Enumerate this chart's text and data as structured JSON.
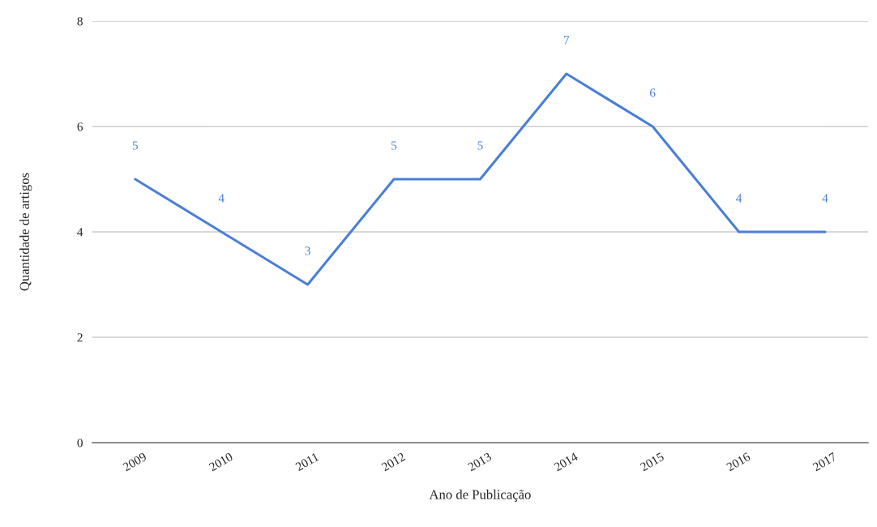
{
  "chart_data": {
    "type": "line",
    "xlabel": "Ano de Publicação",
    "ylabel": "Quantidade de artigos",
    "categories": [
      "2009",
      "2010",
      "2011",
      "2012",
      "2013",
      "2014",
      "2015",
      "2016",
      "2017"
    ],
    "series": [
      {
        "color": "#4a7fd6",
        "values": [
          5,
          4,
          3,
          5,
          5,
          7,
          6,
          4,
          4
        ]
      }
    ],
    "ylim": [
      0,
      8
    ],
    "yticks": [
      0,
      2,
      4,
      6,
      8
    ],
    "grid": "y",
    "data_labels": true,
    "marker": "none",
    "line_style": "solid",
    "legend": false
  }
}
